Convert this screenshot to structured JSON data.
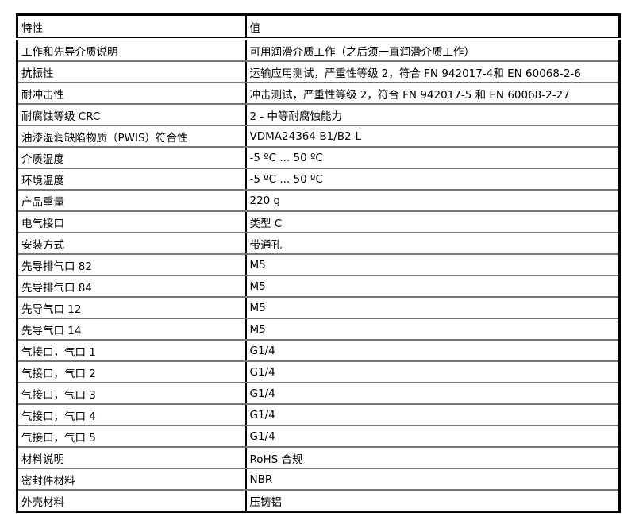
{
  "table": {
    "headers": [
      "特性",
      "值"
    ],
    "rows": [
      [
        "工作和先导介质说明",
        "可用润滑介质工作（之后须一直润滑介质工作）"
      ],
      [
        "抗振性",
        "运输应用测试，严重性等级 2，符合 FN 942017-4和 EN 60068-2-6"
      ],
      [
        "耐冲击性",
        "冲击测试，严重性等级 2，符合 FN 942017-5 和 EN 60068-2-27"
      ],
      [
        "耐腐蚀等级 CRC",
        "2 - 中等耐腐蚀能力"
      ],
      [
        "油漆湿润缺陷物质（PWIS）符合性",
        "VDMA24364-B1/B2-L"
      ],
      [
        "介质温度",
        "-5 ºC ... 50 ºC"
      ],
      [
        "环境温度",
        "-5 ºC ... 50 ºC"
      ],
      [
        "产品重量",
        "220 g"
      ],
      [
        "电气接口",
        "类型 C"
      ],
      [
        "安装方式",
        "带通孔"
      ],
      [
        "先导排气口 82",
        "M5"
      ],
      [
        "先导排气口 84",
        "M5"
      ],
      [
        "先导气口 12",
        "M5"
      ],
      [
        "先导气口 14",
        "M5"
      ],
      [
        "气接口，气口 1",
        "G1/4"
      ],
      [
        "气接口，气口 2",
        "G1/4"
      ],
      [
        "气接口，气口 3",
        "G1/4"
      ],
      [
        "气接口，气口 4",
        "G1/4"
      ],
      [
        "气接口，气口 5",
        "G1/4"
      ],
      [
        "材料说明",
        "RoHS 合规"
      ],
      [
        "密封件材料",
        "NBR"
      ],
      [
        "外壳材料",
        "压铸铝"
      ]
    ]
  }
}
